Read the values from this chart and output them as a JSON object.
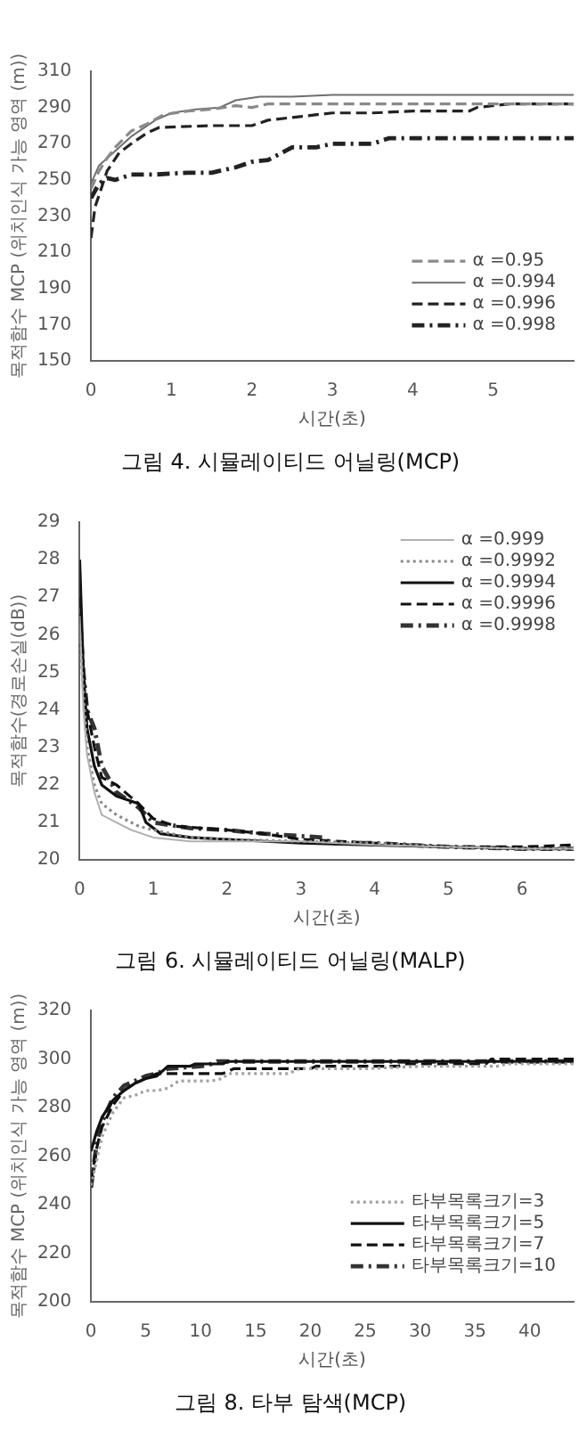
{
  "chart_data": [
    {
      "type": "line",
      "title": "그림 4. 시뮬레이티드 어닐링(MCP)",
      "xlabel": "시간(초)",
      "ylabel": "목적함수 MCP (위치인식 가능 영역 (m))",
      "xlim": [
        0,
        6
      ],
      "xticks": [
        0,
        1,
        2,
        3,
        4,
        5
      ],
      "ylim": [
        150,
        310
      ],
      "yticks": [
        150,
        170,
        190,
        210,
        230,
        250,
        270,
        290,
        310
      ],
      "grid": false,
      "legend": "bottom right",
      "marker": "none",
      "series": [
        {
          "name": "α =0.95",
          "color": "#8a8a8a",
          "line_style": "dashed",
          "x": [
            0,
            0.1,
            0.2,
            0.3,
            0.5,
            0.7,
            0.9,
            1.2,
            1.5,
            1.8,
            2.0,
            2.2,
            3,
            4,
            5,
            6
          ],
          "values": [
            245,
            255,
            262,
            268,
            277,
            281,
            286,
            288,
            289,
            291,
            290,
            292,
            292,
            292,
            292,
            292
          ]
        },
        {
          "name": "α =0.994",
          "color": "#6e6e6e",
          "line_style": "solid",
          "x": [
            0,
            0.1,
            0.3,
            0.5,
            0.8,
            1.0,
            1.3,
            1.6,
            1.8,
            2.1,
            2.5,
            3,
            4,
            5,
            6
          ],
          "values": [
            248,
            258,
            266,
            274,
            283,
            287,
            289,
            290,
            294,
            296,
            296,
            297,
            297,
            297,
            297
          ]
        },
        {
          "name": "α =0.996",
          "color": "#222222",
          "line_style": "dashed",
          "x": [
            0,
            0.05,
            0.2,
            0.35,
            0.5,
            0.7,
            0.85,
            1.5,
            2.0,
            2.2,
            2.6,
            3,
            3.5,
            4,
            4.7,
            4.8,
            5.2,
            6
          ],
          "values": [
            218,
            235,
            255,
            265,
            270,
            276,
            279,
            280,
            280,
            283,
            285,
            287,
            287,
            288,
            288,
            290,
            292,
            292
          ]
        },
        {
          "name": "α =0.998",
          "color": "#222222",
          "line_style": "dashdot",
          "x": [
            0,
            0.1,
            0.2,
            0.3,
            0.5,
            0.8,
            1.2,
            1.5,
            1.8,
            2.0,
            2.2,
            2.5,
            2.8,
            3.0,
            3.5,
            3.7,
            4,
            6
          ],
          "values": [
            240,
            248,
            251,
            250,
            253,
            253,
            254,
            254,
            257,
            260,
            261,
            268,
            268,
            270,
            270,
            273,
            273,
            273
          ]
        }
      ]
    },
    {
      "type": "line",
      "title": "그림 6. 시뮬레이티드 어닐링(MALP)",
      "xlabel": "시간(초)",
      "ylabel": "목적함수(경로손실(dB))",
      "xlim": [
        0,
        6.7
      ],
      "xticks": [
        0,
        1,
        2,
        3,
        4,
        5,
        6
      ],
      "ylim": [
        20,
        29
      ],
      "yticks": [
        20,
        21,
        22,
        23,
        24,
        25,
        26,
        27,
        28,
        29
      ],
      "grid": false,
      "legend": "top right",
      "marker": "none",
      "series": [
        {
          "name": "α =0.999",
          "color": "#b0b0b0",
          "line_style": "solid",
          "x": [
            0,
            0.05,
            0.1,
            0.2,
            0.3,
            0.5,
            0.7,
            1,
            1.5,
            2,
            3,
            4,
            5,
            6,
            6.7
          ],
          "values": [
            26.5,
            24,
            22.8,
            21.8,
            21.2,
            21.0,
            20.8,
            20.6,
            20.5,
            20.5,
            20.5,
            20.4,
            20.35,
            20.3,
            20.3
          ]
        },
        {
          "name": "α =0.9992",
          "color": "#8a8a8a",
          "line_style": "dotted",
          "x": [
            0,
            0.05,
            0.1,
            0.2,
            0.3,
            0.5,
            0.8,
            1,
            1.5,
            2,
            3,
            4,
            5,
            6,
            6.7
          ],
          "values": [
            26,
            24.5,
            23,
            22,
            21.5,
            21.2,
            20.9,
            20.8,
            20.6,
            20.55,
            20.5,
            20.45,
            20.35,
            20.3,
            20.3
          ]
        },
        {
          "name": "α =0.9994",
          "color": "#111111",
          "line_style": "solid",
          "x": [
            0,
            0.05,
            0.1,
            0.2,
            0.3,
            0.5,
            0.8,
            0.9,
            1.1,
            1.5,
            2,
            3,
            4,
            5,
            6,
            6.7
          ],
          "values": [
            28,
            25,
            23.5,
            22.5,
            22,
            21.7,
            21.5,
            21.0,
            20.7,
            20.6,
            20.55,
            20.45,
            20.4,
            20.35,
            20.3,
            20.3
          ]
        },
        {
          "name": "α =0.9996",
          "color": "#111111",
          "line_style": "dashed",
          "x": [
            0,
            0.05,
            0.1,
            0.2,
            0.3,
            0.5,
            0.8,
            1,
            1.3,
            2,
            2.5,
            3,
            4,
            5,
            6,
            6.7
          ],
          "values": [
            27,
            25,
            24,
            23,
            22.2,
            22,
            21.5,
            21.1,
            20.9,
            20.8,
            20.7,
            20.55,
            20.45,
            20.35,
            20.35,
            20.4
          ]
        },
        {
          "name": "α =0.9998",
          "color": "#333333",
          "line_style": "dashdot",
          "x": [
            0,
            0.05,
            0.1,
            0.2,
            0.3,
            0.5,
            0.8,
            1,
            1.5,
            2,
            2.5,
            3.3,
            3.4,
            4,
            5,
            6,
            6.7
          ],
          "values": [
            26.5,
            25,
            24,
            23.5,
            22.5,
            21.8,
            21.4,
            21.0,
            20.85,
            20.8,
            20.7,
            20.6,
            20.45,
            20.45,
            20.35,
            20.3,
            20.3
          ]
        }
      ]
    },
    {
      "type": "line",
      "title": "그림 8. 타부 탐색(MCP)",
      "xlabel": "시간(초)",
      "ylabel": "목적함수 MCP (위치인식 가능 영역 (m))",
      "xlim": [
        0,
        44
      ],
      "xticks": [
        0,
        5,
        10,
        15,
        20,
        25,
        30,
        35,
        40
      ],
      "ylim": [
        200,
        320
      ],
      "yticks": [
        200,
        220,
        240,
        260,
        280,
        300,
        320
      ],
      "grid": false,
      "legend": "bottom right",
      "marker": "none",
      "series": [
        {
          "name": "타부목록크기=3",
          "color": "#a0a0a0",
          "line_style": "dotted",
          "x": [
            0,
            0.5,
            1,
            2,
            3,
            4,
            5,
            6,
            7,
            8,
            11,
            12,
            12.5,
            18,
            19,
            25,
            30,
            37,
            38,
            44
          ],
          "values": [
            248,
            258,
            268,
            278,
            284,
            285,
            287,
            287,
            288,
            291,
            291,
            292,
            294,
            294,
            296,
            296,
            297,
            297,
            298,
            298
          ]
        },
        {
          "name": "타부목록크기=5",
          "color": "#111111",
          "line_style": "solid",
          "x": [
            0,
            0.5,
            1,
            2,
            3,
            4,
            5,
            6,
            7,
            9,
            9.5,
            12,
            12.5,
            44
          ],
          "values": [
            262,
            270,
            276,
            283,
            287,
            290,
            292,
            293,
            297,
            297,
            298,
            298,
            299,
            299
          ]
        },
        {
          "name": "타부목록크기=7",
          "color": "#111111",
          "line_style": "dashed",
          "x": [
            0,
            0.5,
            1,
            2,
            3,
            4,
            5,
            6,
            7,
            12,
            13,
            20,
            20.5,
            28,
            28.5,
            36,
            36.5,
            44
          ],
          "values": [
            250,
            263,
            272,
            281,
            287,
            290,
            292,
            294,
            294,
            294,
            296,
            296,
            297,
            297,
            298,
            298,
            300,
            300
          ]
        },
        {
          "name": "타부목록크기=10",
          "color": "#333333",
          "line_style": "dashdot",
          "x": [
            0,
            0.5,
            1,
            2,
            3,
            4,
            5,
            6,
            7,
            10,
            11,
            11.5,
            44
          ],
          "values": [
            247,
            265,
            274,
            284,
            289,
            291,
            293,
            294,
            296,
            297,
            298,
            299,
            299
          ]
        }
      ]
    }
  ]
}
